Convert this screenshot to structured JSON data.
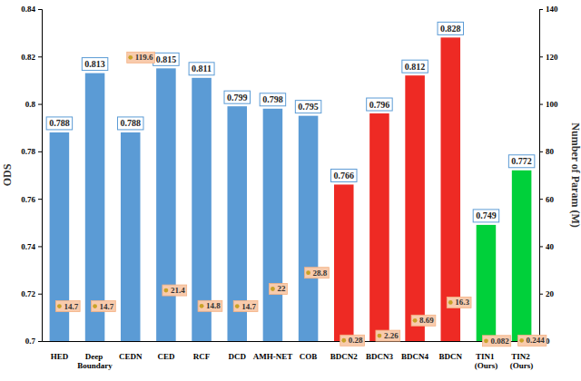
{
  "chart_data": {
    "type": "bar",
    "categories": [
      "HED",
      "Deep Boundary",
      "CEDN",
      "CED",
      "RCF",
      "DCD",
      "AMH-NET",
      "COB",
      "BDCN2",
      "BDCN3",
      "BDCN4",
      "BDCN",
      "TIN1 (Ours)",
      "TIN2 (Ours)"
    ],
    "y_label": "ODS",
    "y2_label": "Number of Param (M)",
    "ylim": [
      0.7,
      0.84
    ],
    "yticks": [
      0.7,
      0.72,
      0.74,
      0.76,
      0.78,
      0.8,
      0.82,
      0.84
    ],
    "y2lim": [
      0,
      140
    ],
    "y2ticks": [
      0,
      20,
      40,
      60,
      80,
      100,
      120,
      140
    ],
    "grid": false,
    "data_labels": true,
    "series": [
      {
        "type": "bar",
        "colors": [
          "#5b9bd5",
          "#5b9bd5",
          "#5b9bd5",
          "#5b9bd5",
          "#5b9bd5",
          "#5b9bd5",
          "#5b9bd5",
          "#5b9bd5",
          "#ee2a24",
          "#ee2a24",
          "#ee2a24",
          "#ee2a24",
          "#00d03a",
          "#00d03a"
        ],
        "values": [
          0.788,
          0.813,
          0.788,
          0.815,
          0.811,
          0.799,
          0.798,
          0.795,
          0.766,
          0.796,
          0.812,
          0.828,
          0.749,
          0.772
        ]
      },
      {
        "type": "scatter",
        "axis": "y2",
        "marker": "circle",
        "color": "#f8cbad",
        "values": [
          14.7,
          14.7,
          119.6,
          21.4,
          14.8,
          14.7,
          22,
          28.8,
          0.28,
          2.26,
          8.69,
          16.3,
          0.082,
          0.244
        ]
      }
    ]
  }
}
